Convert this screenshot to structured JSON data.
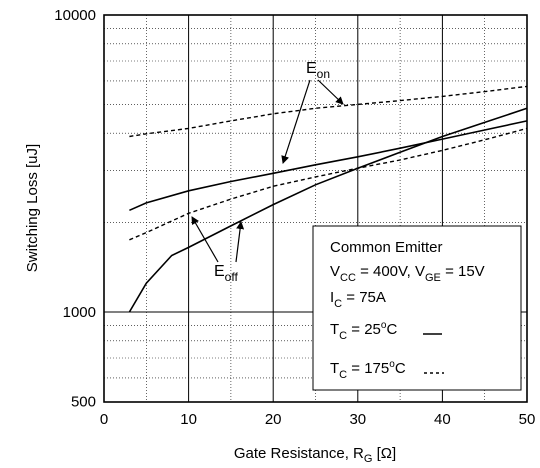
{
  "chart_data": {
    "type": "line",
    "title": "",
    "xlabel": "Gate Resistance, R",
    "xlabel_sub": "G",
    "xlabel_unit": " [Ω]",
    "ylabel": "Switching Loss [uJ]",
    "x_scale": "linear",
    "y_scale": "log",
    "xlim": [
      0,
      50
    ],
    "ylim": [
      500,
      10000
    ],
    "x_ticks": [
      0,
      10,
      20,
      30,
      40,
      50
    ],
    "x_tick_labels": [
      "0",
      "10",
      "20",
      "30",
      "40",
      "50"
    ],
    "y_tick_labels": [
      {
        "value": 500,
        "label": "500"
      },
      {
        "value": 1000,
        "label": "1000"
      },
      {
        "value": 10000,
        "label": "10000"
      }
    ],
    "grid": true,
    "series": [
      {
        "curve": "Eon",
        "temp": "25C",
        "style": "solid",
        "x": [
          3,
          5,
          10,
          15,
          20,
          25,
          30,
          35,
          40,
          45,
          50
        ],
        "y": [
          2200,
          2330,
          2560,
          2750,
          2930,
          3130,
          3330,
          3560,
          3820,
          4100,
          4400
        ]
      },
      {
        "curve": "Eon",
        "temp": "175C",
        "style": "dashed",
        "x": [
          3,
          5,
          10,
          15,
          20,
          25,
          30,
          35,
          40,
          45,
          50
        ],
        "y": [
          3900,
          3980,
          4150,
          4400,
          4650,
          4850,
          5000,
          5150,
          5320,
          5520,
          5750
        ]
      },
      {
        "curve": "Eoff",
        "temp": "25C",
        "style": "solid",
        "x": [
          3,
          5,
          8,
          10,
          15,
          20,
          25,
          30,
          35,
          40,
          45,
          50
        ],
        "y": [
          1000,
          1250,
          1550,
          1650,
          1950,
          2300,
          2680,
          3050,
          3450,
          3900,
          4350,
          4850
        ]
      },
      {
        "curve": "Eoff",
        "temp": "175C",
        "style": "dashed",
        "x": [
          3,
          5,
          10,
          15,
          20,
          25,
          30,
          35,
          40,
          45,
          50
        ],
        "y": [
          1750,
          1850,
          2150,
          2400,
          2650,
          2850,
          3050,
          3250,
          3500,
          3800,
          4150
        ]
      }
    ],
    "annotations": {
      "eon": {
        "main": "E",
        "sub": "on"
      },
      "eoff": {
        "main": "E",
        "sub": "off"
      }
    },
    "legend": {
      "placement": "lower-right",
      "line1": "Common Emitter",
      "line2_a": "V",
      "line2_a_sub": "CC",
      "line2_b": " = 400V, V",
      "line2_b_sub": "GE",
      "line2_c": " = 15V",
      "line3_a": "I",
      "line3_a_sub": "C",
      "line3_b": " = 75A",
      "line4_a": "T",
      "line4_a_sub": "C",
      "line4_b": " = 25",
      "line4_sup": "o",
      "line4_c": "C",
      "line5_a": "T",
      "line5_a_sub": "C",
      "line5_b": " = 175",
      "line5_sup": "o",
      "line5_c": "C"
    }
  }
}
